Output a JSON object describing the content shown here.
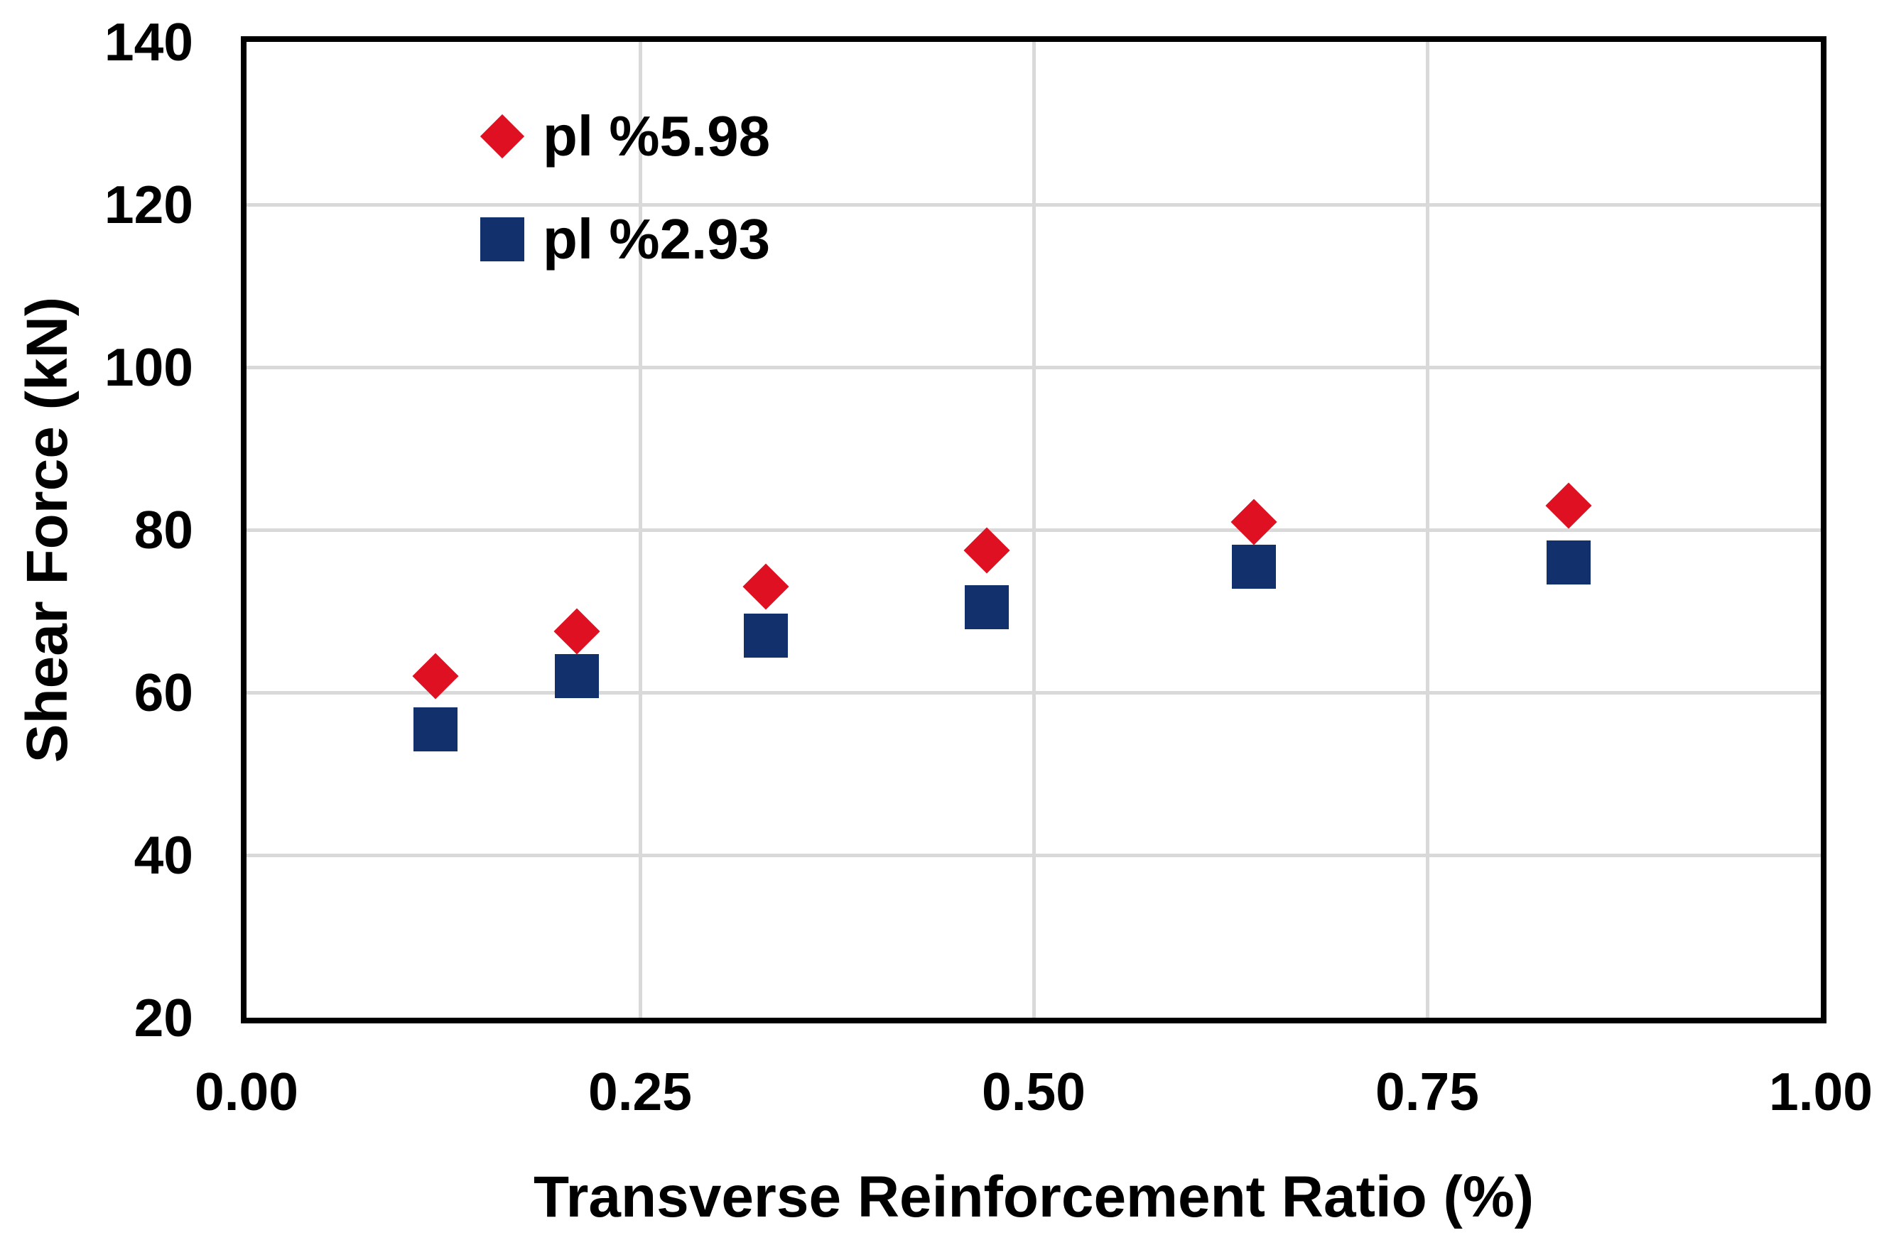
{
  "chart_data": {
    "type": "scatter",
    "title": "",
    "xlabel": "Transverse Reinforcement Ratio (%)",
    "ylabel": "Shear Force (kN)",
    "xlim": [
      0,
      1
    ],
    "ylim": [
      20,
      140
    ],
    "grid": true,
    "legend_position": "inside-top-left",
    "x_ticks": [
      {
        "value": 0.0,
        "label": "0.00"
      },
      {
        "value": 0.25,
        "label": "0.25"
      },
      {
        "value": 0.5,
        "label": "0.50"
      },
      {
        "value": 0.75,
        "label": "0.75"
      },
      {
        "value": 1.0,
        "label": "1.00"
      }
    ],
    "y_ticks": [
      {
        "value": 20,
        "label": "20"
      },
      {
        "value": 40,
        "label": "40"
      },
      {
        "value": 60,
        "label": "60"
      },
      {
        "value": 80,
        "label": "80"
      },
      {
        "value": 100,
        "label": "100"
      },
      {
        "value": 120,
        "label": "120"
      },
      {
        "value": 140,
        "label": "140"
      }
    ],
    "series": [
      {
        "name": "pl %5.98",
        "marker": "diamond",
        "color": "#DE1021",
        "x": [
          0.12,
          0.21,
          0.33,
          0.47,
          0.64,
          0.84
        ],
        "y": [
          62,
          67.5,
          73,
          77.5,
          81,
          83
        ]
      },
      {
        "name": "pl %2.93",
        "marker": "square",
        "color": "#12306B",
        "x": [
          0.12,
          0.21,
          0.33,
          0.47,
          0.64,
          0.84
        ],
        "y": [
          55.5,
          62,
          67,
          70.5,
          75.5,
          76
        ]
      }
    ]
  },
  "colors": {
    "red_series": "#DE1021",
    "navy_series": "#12306B",
    "gridline": "#D9D9D9",
    "frame": "#000000",
    "text": "#000000",
    "background": "#ffffff"
  }
}
